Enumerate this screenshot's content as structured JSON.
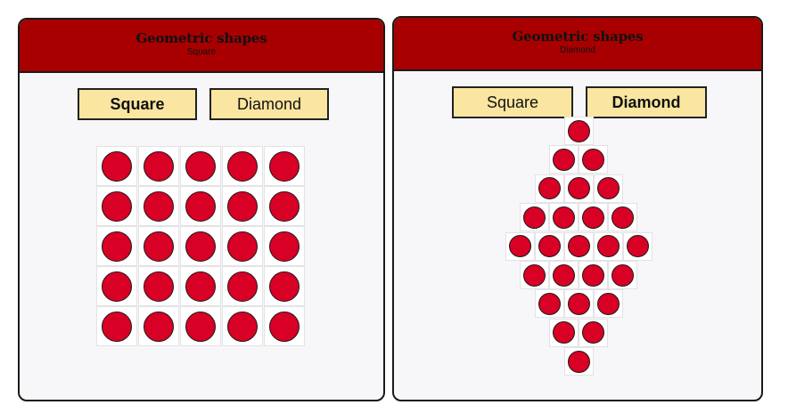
{
  "panels": [
    {
      "title": "Geometric shapes",
      "subtitle": "Square",
      "buttons": {
        "square": "Square",
        "diamond": "Diamond"
      },
      "active": "square",
      "grid": {
        "shape": "square",
        "rows": 5,
        "cols": 5
      },
      "colors": {
        "dot": "#d90025",
        "header": "#a80000",
        "button": "#fae6a0"
      }
    },
    {
      "title": "Geometric shapes",
      "subtitle": "Diamond",
      "buttons": {
        "square": "Square",
        "diamond": "Diamond"
      },
      "active": "diamond",
      "grid": {
        "shape": "diamond",
        "row_counts": [
          1,
          2,
          3,
          4,
          5,
          4,
          3,
          2,
          1
        ]
      },
      "colors": {
        "dot": "#d90025",
        "header": "#a80000",
        "button": "#fae6a0"
      }
    }
  ]
}
